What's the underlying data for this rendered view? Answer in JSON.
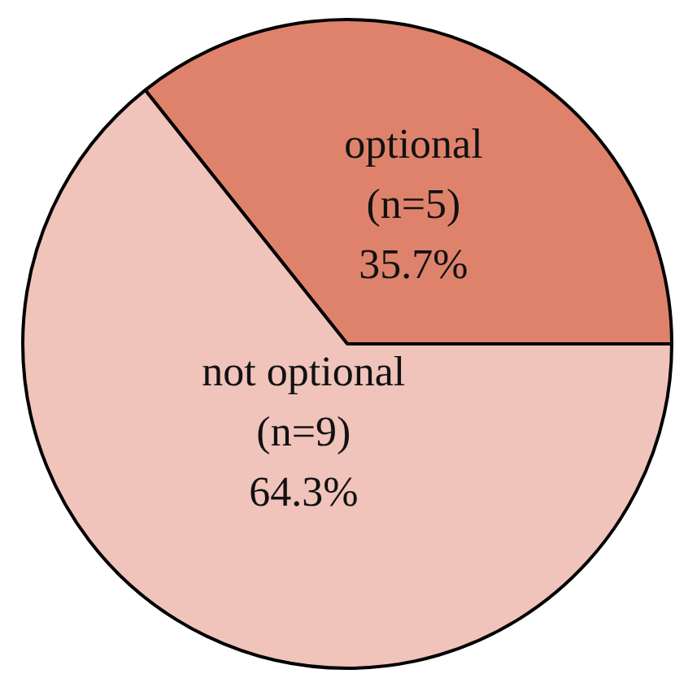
{
  "chart_data": {
    "type": "pie",
    "categories": [
      "optional",
      "not optional"
    ],
    "values": [
      35.7,
      64.3
    ],
    "value_labels": [
      "(n=5)\n35.7%",
      "(n=9)\n64.3%"
    ],
    "colors": [
      "#df826c",
      "#f0c3bb"
    ]
  }
}
